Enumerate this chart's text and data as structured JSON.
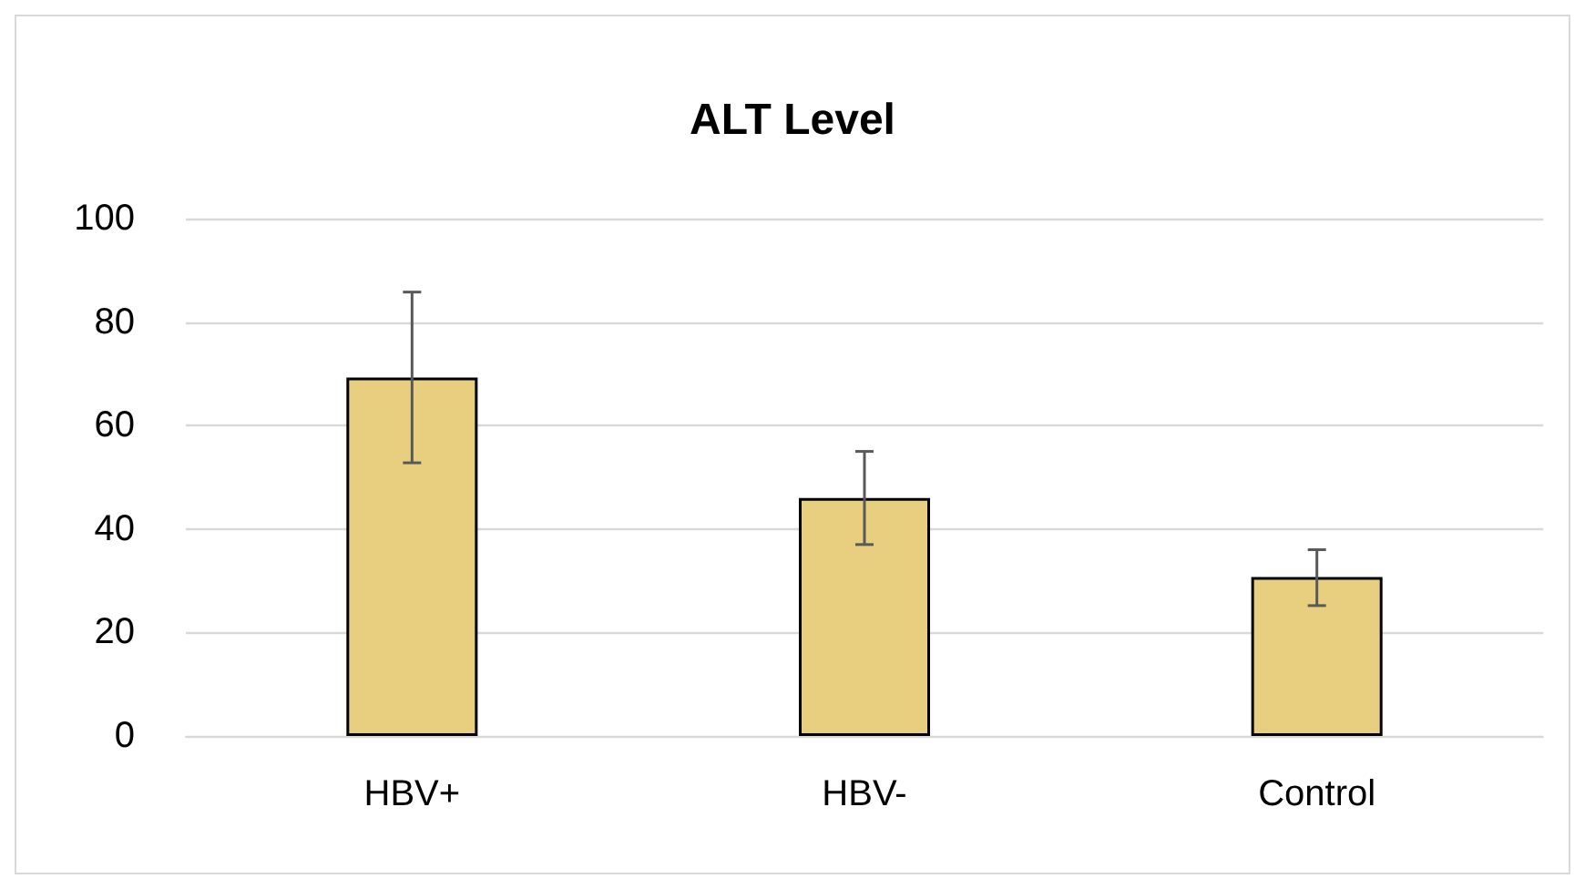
{
  "chart_data": {
    "type": "bar",
    "title": "ALT Level",
    "categories": [
      "HBV+",
      "HBV-",
      "Control"
    ],
    "values": [
      69.3,
      46,
      30.7
    ],
    "errors": [
      [
        52.8,
        85.8
      ],
      [
        37,
        55
      ],
      [
        25.2,
        36
      ]
    ],
    "color": "#e8cf80",
    "ylim": [
      0,
      100
    ],
    "yticks": [
      0,
      20,
      40,
      60,
      80,
      100
    ],
    "grid": "y"
  }
}
